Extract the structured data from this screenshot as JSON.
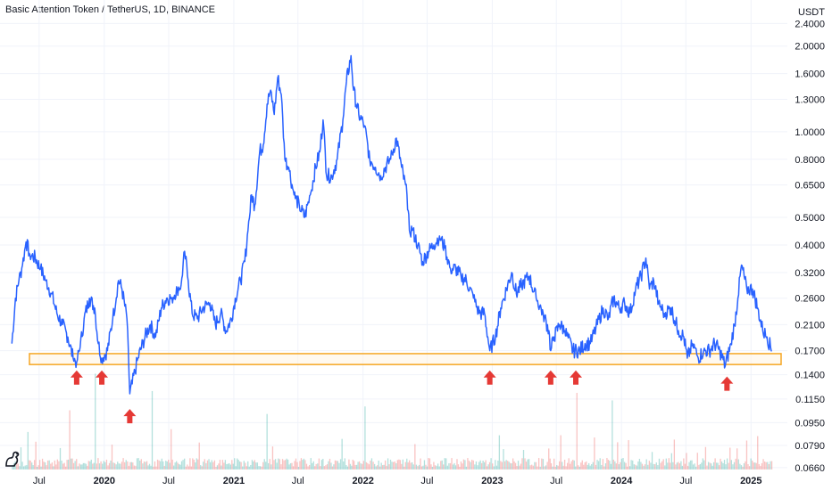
{
  "header": {
    "title": "Basic Attention Token / TetherUS, 1D, BINANCE",
    "currency": "USDT"
  },
  "chart_data": {
    "type": "line",
    "title": "Basic Attention Token / TetherUS, 1D, BINANCE",
    "y_scale": "log",
    "ylim": [
      0.065,
      2.55
    ],
    "y_ticks": [
      "2.4000",
      "2.0000",
      "1.6000",
      "1.3000",
      "1.0000",
      "0.8000",
      "0.6500",
      "0.5000",
      "0.4000",
      "0.3200",
      "0.2600",
      "0.2100",
      "0.1700",
      "0.1400",
      "0.1150",
      "0.0950",
      "0.0790",
      "0.0660"
    ],
    "x_ticks": [
      {
        "label": "Jul",
        "date": "2019-07-01",
        "year": false
      },
      {
        "label": "2020",
        "date": "2020-01-01",
        "year": true
      },
      {
        "label": "Jul",
        "date": "2020-07-01",
        "year": false
      },
      {
        "label": "2021",
        "date": "2021-01-01",
        "year": true
      },
      {
        "label": "Jul",
        "date": "2021-07-01",
        "year": false
      },
      {
        "label": "2022",
        "date": "2022-01-01",
        "year": true
      },
      {
        "label": "Jul",
        "date": "2022-07-01",
        "year": false
      },
      {
        "label": "2023",
        "date": "2023-01-01",
        "year": true
      },
      {
        "label": "Jul",
        "date": "2023-07-01",
        "year": false
      },
      {
        "label": "2024",
        "date": "2024-01-01",
        "year": true
      },
      {
        "label": "Jul",
        "date": "2024-07-01",
        "year": false
      },
      {
        "label": "2025",
        "date": "2025-01-01",
        "year": true
      }
    ],
    "grid": true,
    "series": [
      {
        "color": "#2962ff",
        "points": [
          [
            "2019-04-15",
            0.18
          ],
          [
            "2019-04-25",
            0.26
          ],
          [
            "2019-05-05",
            0.3
          ],
          [
            "2019-05-15",
            0.34
          ],
          [
            "2019-05-25",
            0.41
          ],
          [
            "2019-06-05",
            0.37
          ],
          [
            "2019-06-20",
            0.36
          ],
          [
            "2019-07-05",
            0.33
          ],
          [
            "2019-07-20",
            0.3
          ],
          [
            "2019-08-05",
            0.27
          ],
          [
            "2019-08-20",
            0.23
          ],
          [
            "2019-09-05",
            0.21
          ],
          [
            "2019-09-20",
            0.19
          ],
          [
            "2019-10-05",
            0.16
          ],
          [
            "2019-10-15",
            0.155
          ],
          [
            "2019-10-25",
            0.175
          ],
          [
            "2019-11-05",
            0.22
          ],
          [
            "2019-11-20",
            0.26
          ],
          [
            "2019-12-05",
            0.24
          ],
          [
            "2019-12-15",
            0.18
          ],
          [
            "2019-12-25",
            0.16
          ],
          [
            "2020-01-10",
            0.17
          ],
          [
            "2020-01-25",
            0.22
          ],
          [
            "2020-02-10",
            0.3
          ],
          [
            "2020-02-20",
            0.28
          ],
          [
            "2020-03-05",
            0.22
          ],
          [
            "2020-03-13",
            0.12
          ],
          [
            "2020-03-20",
            0.13
          ],
          [
            "2020-04-05",
            0.16
          ],
          [
            "2020-04-25",
            0.19
          ],
          [
            "2020-05-10",
            0.21
          ],
          [
            "2020-05-25",
            0.19
          ],
          [
            "2020-06-10",
            0.24
          ],
          [
            "2020-06-25",
            0.26
          ],
          [
            "2020-07-10",
            0.26
          ],
          [
            "2020-07-25",
            0.28
          ],
          [
            "2020-08-05",
            0.29
          ],
          [
            "2020-08-15",
            0.38
          ],
          [
            "2020-08-25",
            0.3
          ],
          [
            "2020-09-05",
            0.23
          ],
          [
            "2020-09-20",
            0.22
          ],
          [
            "2020-10-05",
            0.24
          ],
          [
            "2020-10-25",
            0.25
          ],
          [
            "2020-11-10",
            0.21
          ],
          [
            "2020-11-25",
            0.23
          ],
          [
            "2020-12-10",
            0.2
          ],
          [
            "2020-12-25",
            0.22
          ],
          [
            "2021-01-05",
            0.26
          ],
          [
            "2021-01-20",
            0.3
          ],
          [
            "2021-02-01",
            0.35
          ],
          [
            "2021-02-10",
            0.45
          ],
          [
            "2021-02-20",
            0.6
          ],
          [
            "2021-03-01",
            0.55
          ],
          [
            "2021-03-15",
            0.85
          ],
          [
            "2021-03-25",
            0.9
          ],
          [
            "2021-04-05",
            1.25
          ],
          [
            "2021-04-15",
            1.4
          ],
          [
            "2021-04-25",
            1.15
          ],
          [
            "2021-05-05",
            1.55
          ],
          [
            "2021-05-15",
            1.35
          ],
          [
            "2021-05-25",
            0.8
          ],
          [
            "2021-06-05",
            0.75
          ],
          [
            "2021-06-20",
            0.6
          ],
          [
            "2021-07-05",
            0.55
          ],
          [
            "2021-07-20",
            0.5
          ],
          [
            "2021-08-05",
            0.6
          ],
          [
            "2021-08-20",
            0.75
          ],
          [
            "2021-09-01",
            0.85
          ],
          [
            "2021-09-10",
            1.1
          ],
          [
            "2021-09-20",
            0.7
          ],
          [
            "2021-10-05",
            0.7
          ],
          [
            "2021-10-20",
            0.8
          ],
          [
            "2021-11-05",
            1.1
          ],
          [
            "2021-11-15",
            1.5
          ],
          [
            "2021-11-28",
            1.85
          ],
          [
            "2021-12-05",
            1.4
          ],
          [
            "2021-12-20",
            1.15
          ],
          [
            "2022-01-05",
            1.05
          ],
          [
            "2022-01-20",
            0.8
          ],
          [
            "2022-02-05",
            0.75
          ],
          [
            "2022-02-20",
            0.7
          ],
          [
            "2022-03-05",
            0.75
          ],
          [
            "2022-03-20",
            0.8
          ],
          [
            "2022-04-05",
            0.95
          ],
          [
            "2022-04-20",
            0.75
          ],
          [
            "2022-05-05",
            0.6
          ],
          [
            "2022-05-12",
            0.45
          ],
          [
            "2022-05-20",
            0.45
          ],
          [
            "2022-06-05",
            0.4
          ],
          [
            "2022-06-18",
            0.35
          ],
          [
            "2022-07-05",
            0.38
          ],
          [
            "2022-07-20",
            0.4
          ],
          [
            "2022-08-05",
            0.43
          ],
          [
            "2022-08-20",
            0.39
          ],
          [
            "2022-09-05",
            0.33
          ],
          [
            "2022-09-20",
            0.33
          ],
          [
            "2022-10-05",
            0.31
          ],
          [
            "2022-10-20",
            0.3
          ],
          [
            "2022-11-09",
            0.26
          ],
          [
            "2022-11-25",
            0.23
          ],
          [
            "2022-12-10",
            0.23
          ],
          [
            "2022-12-25",
            0.17
          ],
          [
            "2023-01-10",
            0.19
          ],
          [
            "2023-01-25",
            0.24
          ],
          [
            "2023-02-10",
            0.28
          ],
          [
            "2023-02-25",
            0.32
          ],
          [
            "2023-03-10",
            0.27
          ],
          [
            "2023-03-25",
            0.29
          ],
          [
            "2023-04-15",
            0.31
          ],
          [
            "2023-05-05",
            0.26
          ],
          [
            "2023-05-25",
            0.23
          ],
          [
            "2023-06-10",
            0.2
          ],
          [
            "2023-06-15",
            0.17
          ],
          [
            "2023-06-25",
            0.19
          ],
          [
            "2023-07-10",
            0.21
          ],
          [
            "2023-07-25",
            0.2
          ],
          [
            "2023-08-17",
            0.17
          ],
          [
            "2023-09-05",
            0.17
          ],
          [
            "2023-09-20",
            0.18
          ],
          [
            "2023-10-05",
            0.18
          ],
          [
            "2023-10-25",
            0.21
          ],
          [
            "2023-11-10",
            0.24
          ],
          [
            "2023-11-25",
            0.22
          ],
          [
            "2023-12-10",
            0.26
          ],
          [
            "2023-12-25",
            0.24
          ],
          [
            "2024-01-10",
            0.25
          ],
          [
            "2024-01-25",
            0.23
          ],
          [
            "2024-02-10",
            0.28
          ],
          [
            "2024-02-25",
            0.31
          ],
          [
            "2024-03-10",
            0.36
          ],
          [
            "2024-03-20",
            0.28
          ],
          [
            "2024-04-01",
            0.3
          ],
          [
            "2024-04-15",
            0.25
          ],
          [
            "2024-05-01",
            0.23
          ],
          [
            "2024-05-20",
            0.24
          ],
          [
            "2024-06-10",
            0.2
          ],
          [
            "2024-06-25",
            0.19
          ],
          [
            "2024-07-05",
            0.16
          ],
          [
            "2024-07-20",
            0.18
          ],
          [
            "2024-08-05",
            0.16
          ],
          [
            "2024-08-20",
            0.17
          ],
          [
            "2024-09-05",
            0.17
          ],
          [
            "2024-09-20",
            0.18
          ],
          [
            "2024-10-05",
            0.17
          ],
          [
            "2024-10-20",
            0.15
          ],
          [
            "2024-11-05",
            0.18
          ],
          [
            "2024-11-15",
            0.21
          ],
          [
            "2024-11-25",
            0.26
          ],
          [
            "2024-12-05",
            0.34
          ],
          [
            "2024-12-20",
            0.28
          ],
          [
            "2025-01-05",
            0.28
          ],
          [
            "2025-01-20",
            0.24
          ],
          [
            "2025-02-03",
            0.2
          ],
          [
            "2025-02-15",
            0.19
          ],
          [
            "2025-03-01",
            0.17
          ]
        ]
      }
    ],
    "support_zone": {
      "low": 0.152,
      "high": 0.166,
      "color": "#f5a623"
    },
    "arrows": [
      {
        "date": "2019-10-15",
        "price": 0.145,
        "color": "#e53935"
      },
      {
        "date": "2019-12-25",
        "price": 0.145,
        "color": "#e53935"
      },
      {
        "date": "2020-03-13",
        "price": 0.106,
        "color": "#e53935"
      },
      {
        "date": "2022-12-25",
        "price": 0.145,
        "color": "#e53935"
      },
      {
        "date": "2023-06-15",
        "price": 0.145,
        "color": "#e53935"
      },
      {
        "date": "2023-08-25",
        "price": 0.145,
        "color": "#e53935"
      },
      {
        "date": "2024-10-25",
        "price": 0.138,
        "color": "#e53935"
      }
    ],
    "volume": {
      "up_color": "#26a69a",
      "down_color": "#ef5350"
    }
  }
}
